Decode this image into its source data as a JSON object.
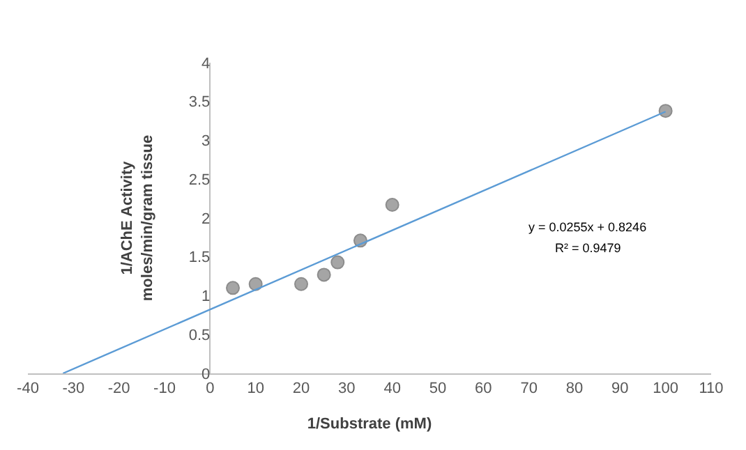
{
  "chart_data": {
    "type": "scatter",
    "xlabel": "1/Substrate (mM)",
    "ylabel": "1/AChE Activity\nmoles/min/gram tissue",
    "xlim": [
      -40,
      110
    ],
    "xticks": [
      -40,
      -30,
      -20,
      -10,
      0,
      10,
      20,
      30,
      40,
      50,
      60,
      70,
      80,
      90,
      100,
      110
    ],
    "ylim": [
      0,
      4
    ],
    "yticks": [
      0,
      0.5,
      1,
      1.5,
      2,
      2.5,
      3,
      3.5,
      4
    ],
    "legend": false,
    "marker": "circle",
    "annotations": [
      "y = 0.0255x + 0.8246",
      "R² = 0.9479"
    ],
    "series": [
      {
        "color": "#a5a5a5",
        "x": [
          5,
          10,
          20,
          25,
          28,
          33,
          40,
          100
        ],
        "values": [
          1.1,
          1.15,
          1.15,
          1.27,
          1.43,
          1.71,
          2.17,
          3.38
        ]
      },
      {
        "type": "line",
        "color": "#5b9bd5",
        "marker": "none",
        "line_style": "solid",
        "x": [
          -32.3,
          100
        ],
        "values": [
          0,
          3.37
        ]
      }
    ]
  }
}
